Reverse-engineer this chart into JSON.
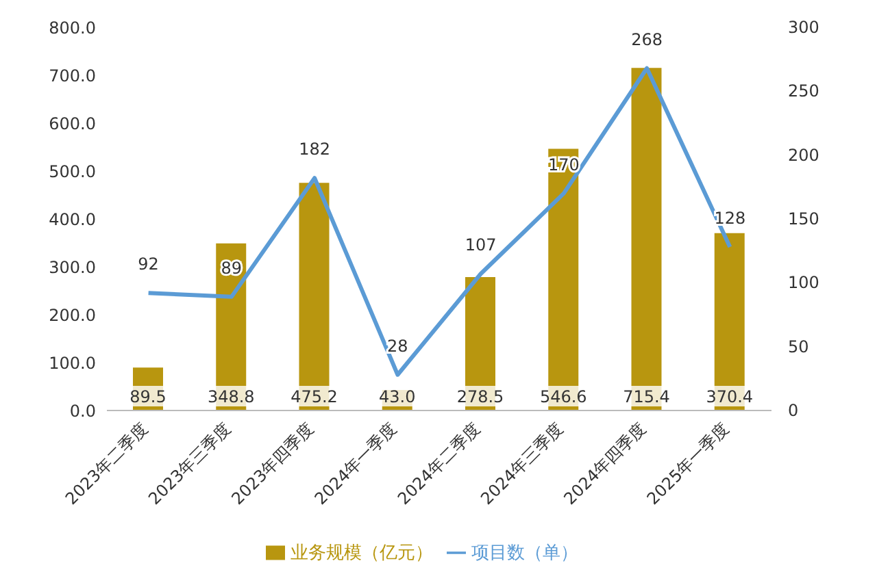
{
  "chart_data": {
    "type": "bar",
    "categories": [
      "2023年二季度",
      "2023年三季度",
      "2023年四季度",
      "2024年一季度",
      "2024年二季度",
      "2024年三季度",
      "2024年四季度",
      "2025年一季度"
    ],
    "series": [
      {
        "name": "业务规模（亿元）",
        "color": "#b8960f",
        "values": [
          89.5,
          348.8,
          475.2,
          43.0,
          278.5,
          546.6,
          715.4,
          370.4
        ],
        "value_labels": [
          "89.5",
          "348.8",
          "475.2",
          "43.0",
          "278.5",
          "546.6",
          "715.4",
          "370.4"
        ]
      },
      {
        "name": "项目数（单）",
        "type": "line",
        "axis": "y2",
        "color": "#5b9bd5",
        "values": [
          92,
          89,
          182,
          28,
          107,
          170,
          268,
          128
        ],
        "value_labels": [
          "92",
          "89",
          "182",
          "28",
          "107",
          "170",
          "268",
          "128"
        ]
      }
    ],
    "ylim": [
      0,
      800
    ],
    "yticks": [
      {
        "value": 0,
        "label": "0.0"
      },
      {
        "value": 100,
        "label": "100.0"
      },
      {
        "value": 200,
        "label": "200.0"
      },
      {
        "value": 300,
        "label": "300.0"
      },
      {
        "value": 400,
        "label": "400.0"
      },
      {
        "value": 500,
        "label": "500.0"
      },
      {
        "value": 600,
        "label": "600.0"
      },
      {
        "value": 700,
        "label": "700.0"
      },
      {
        "value": 800,
        "label": "800.0"
      }
    ],
    "y2lim": [
      0,
      300
    ],
    "y2ticks": [
      0,
      50,
      100,
      150,
      200,
      250,
      300
    ],
    "grid": false,
    "legend": "bottom",
    "marker": "none",
    "line_style": "solid"
  }
}
